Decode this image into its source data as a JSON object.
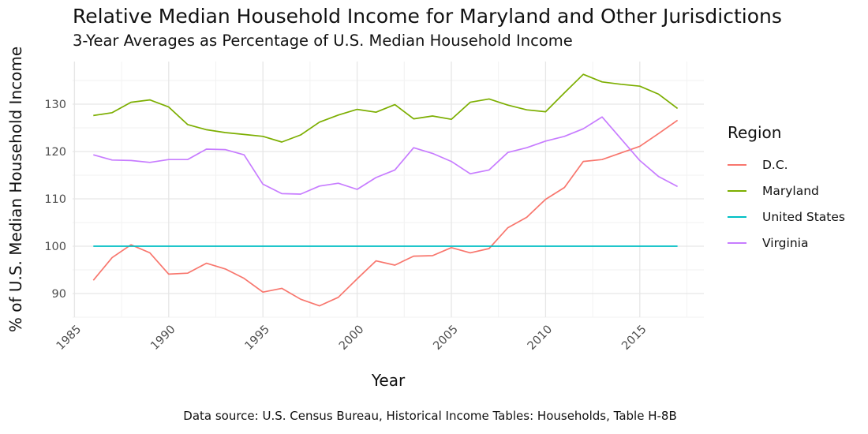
{
  "chart_data": {
    "type": "line",
    "title": "Relative Median Household Income for Maryland and Other Jurisdictions",
    "subtitle": "3-Year Averages as Percentage of U.S. Median Household Income",
    "xlabel": "Year",
    "ylabel": "% of U.S. Median Household Income",
    "caption": "Data source: U.S. Census Bureau, Historical Income Tables: Households, Table H-8B",
    "xlim": [
      1984.9,
      2018.4
    ],
    "ylim": [
      85.0,
      139.0
    ],
    "x_ticks": [
      1985,
      1990,
      1995,
      2000,
      2005,
      2010,
      2015
    ],
    "y_ticks": [
      90,
      100,
      110,
      120,
      130
    ],
    "grid": true,
    "legend_title": "Region",
    "legend_position": "right",
    "x": [
      1986,
      1987,
      1988,
      1989,
      1990,
      1991,
      1992,
      1993,
      1994,
      1995,
      1996,
      1997,
      1998,
      1999,
      2000,
      2001,
      2002,
      2003,
      2004,
      2005,
      2006,
      2007,
      2008,
      2009,
      2010,
      2011,
      2012,
      2013,
      2014,
      2015,
      2016,
      2017
    ],
    "series": [
      {
        "name": "D.C.",
        "color": "#F8766D",
        "values": [
          92.8,
          97.6,
          100.3,
          98.6,
          94.1,
          94.3,
          96.4,
          95.2,
          93.2,
          90.3,
          91.1,
          88.8,
          87.4,
          89.2,
          93.1,
          96.9,
          96.0,
          97.9,
          98.0,
          99.7,
          98.6,
          99.5,
          103.9,
          106.1,
          109.9,
          112.4,
          117.9,
          118.3,
          119.7,
          121.1,
          123.8,
          126.6
        ]
      },
      {
        "name": "Maryland",
        "color": "#7CAE00",
        "values": [
          127.6,
          128.2,
          130.4,
          130.9,
          129.4,
          125.7,
          124.6,
          124.0,
          123.6,
          123.2,
          122.0,
          123.5,
          126.2,
          127.7,
          128.9,
          128.3,
          129.9,
          126.9,
          127.5,
          126.8,
          130.4,
          131.1,
          129.8,
          128.8,
          128.4,
          132.4,
          136.3,
          134.7,
          134.2,
          133.8,
          132.1,
          129.1
        ]
      },
      {
        "name": "United States",
        "color": "#00BFC4",
        "values": [
          100,
          100,
          100,
          100,
          100,
          100,
          100,
          100,
          100,
          100,
          100,
          100,
          100,
          100,
          100,
          100,
          100,
          100,
          100,
          100,
          100,
          100,
          100,
          100,
          100,
          100,
          100,
          100,
          100,
          100,
          100,
          100
        ]
      },
      {
        "name": "Virginia",
        "color": "#C77CFF",
        "values": [
          119.3,
          118.2,
          118.1,
          117.7,
          118.3,
          118.3,
          120.5,
          120.4,
          119.3,
          113.1,
          111.1,
          111.0,
          112.7,
          113.3,
          112.0,
          114.5,
          116.1,
          120.8,
          119.6,
          117.9,
          115.3,
          116.1,
          119.8,
          120.8,
          122.2,
          123.2,
          124.8,
          127.3,
          122.7,
          118.1,
          114.7,
          112.6
        ]
      }
    ]
  }
}
